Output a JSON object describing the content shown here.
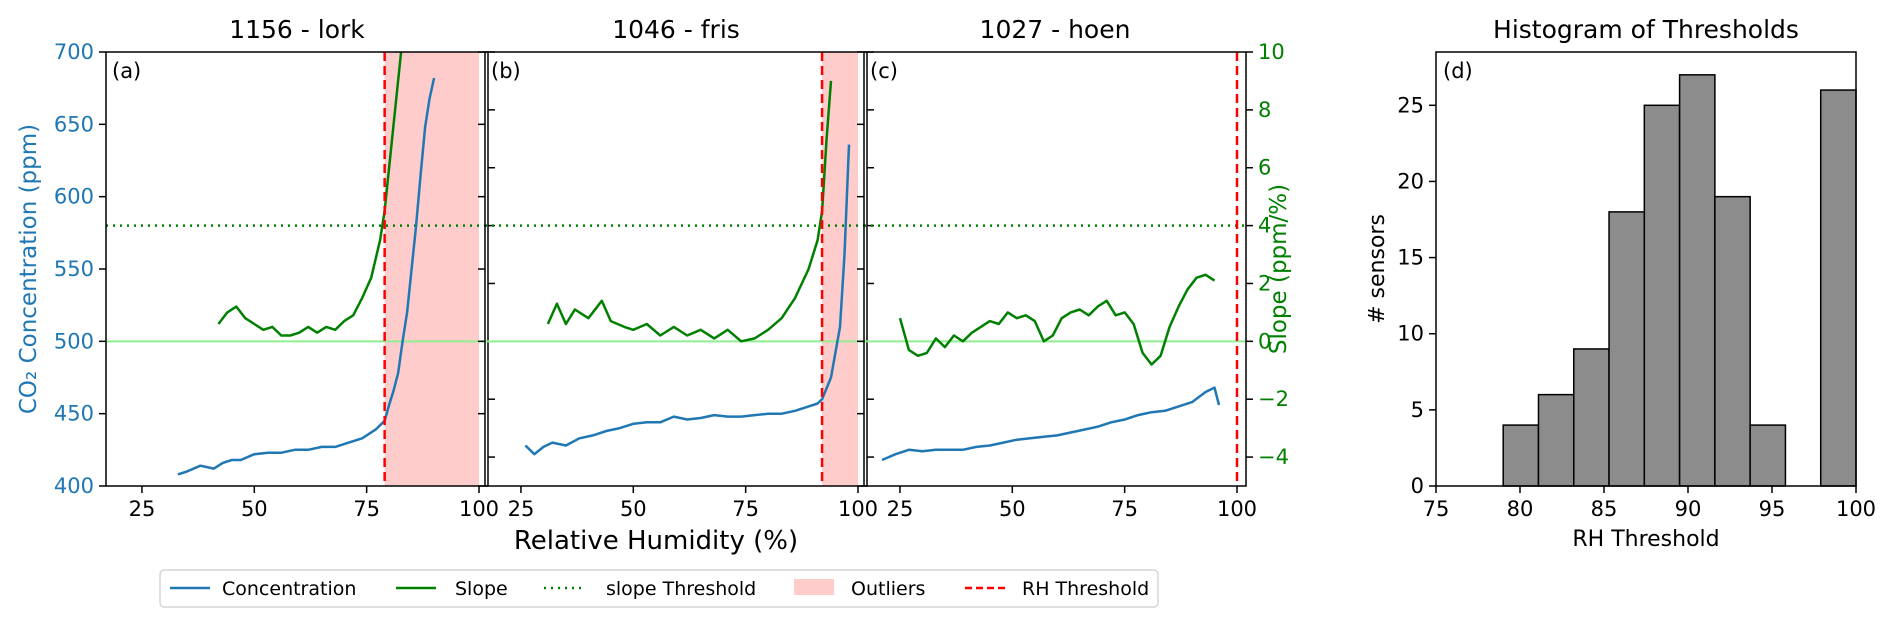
{
  "figure": {
    "shared_xlabel": "Relative Humidity (%)",
    "left_ylabel": "CO₂ Concentration (ppm)",
    "right_ylabel": "Slope (ppm/%)",
    "legend": [
      "Concentration",
      "Slope",
      "slope Threshold",
      "Outliers",
      "RH Threshold"
    ]
  },
  "colors": {
    "concentration": "#1f77b4",
    "slope": "#008000",
    "slope_threshold": "#008000",
    "zero_line": "#90ee90",
    "outliers": "#ffcccc",
    "rh_threshold": "#ff0000",
    "histogram_bar": "#8c8c8c"
  },
  "chart_data": [
    {
      "type": "line",
      "panel": "(a)",
      "title": "1156 - lork",
      "xlim": [
        17,
        102
      ],
      "xticks": [
        25,
        50,
        75,
        100
      ],
      "ylim_left": [
        400,
        700
      ],
      "yticks_left": [
        400,
        450,
        500,
        550,
        600,
        650,
        700
      ],
      "ylim_right": [
        -5,
        10
      ],
      "yticks_right": [
        -4,
        -2,
        0,
        2,
        4,
        6,
        8,
        10
      ],
      "slope_threshold": 4,
      "rh_threshold": 79,
      "outlier_range": [
        79,
        100
      ],
      "series": [
        {
          "name": "Concentration",
          "axis": "left",
          "x": [
            33,
            35,
            38,
            41,
            43,
            45,
            47,
            50,
            53,
            56,
            59,
            62,
            65,
            68,
            71,
            74,
            77,
            79,
            80,
            81,
            82,
            83,
            84,
            85,
            86,
            87,
            88,
            89,
            90
          ],
          "y": [
            408,
            410,
            414,
            412,
            416,
            418,
            418,
            422,
            423,
            423,
            425,
            425,
            427,
            427,
            430,
            433,
            439,
            445,
            456,
            466,
            478,
            500,
            520,
            550,
            580,
            615,
            648,
            668,
            682
          ]
        },
        {
          "name": "Slope",
          "axis": "right",
          "x": [
            42,
            44,
            46,
            48,
            50,
            52,
            54,
            56,
            58,
            60,
            62,
            64,
            66,
            68,
            70,
            72,
            74,
            76,
            78,
            79,
            80,
            81,
            82,
            83
          ],
          "y": [
            0.6,
            1.0,
            1.2,
            0.8,
            0.6,
            0.4,
            0.5,
            0.2,
            0.2,
            0.3,
            0.5,
            0.3,
            0.5,
            0.4,
            0.7,
            0.9,
            1.5,
            2.2,
            3.5,
            4.5,
            6.0,
            7.5,
            9.0,
            10.5
          ]
        }
      ]
    },
    {
      "type": "line",
      "panel": "(b)",
      "title": "1046 - fris",
      "xlim": [
        17,
        102
      ],
      "xticks": [
        25,
        50,
        75,
        100
      ],
      "ylim_left": [
        400,
        700
      ],
      "yticks_left": [
        400,
        450,
        500,
        550,
        600,
        650,
        700
      ],
      "ylim_right": [
        -5,
        10
      ],
      "yticks_right": [
        -4,
        -2,
        0,
        2,
        4,
        6,
        8,
        10
      ],
      "slope_threshold": 4,
      "rh_threshold": 92,
      "outlier_range": [
        92,
        100
      ],
      "series": [
        {
          "name": "Concentration",
          "axis": "left",
          "x": [
            26,
            28,
            30,
            32,
            35,
            38,
            41,
            44,
            47,
            50,
            53,
            56,
            59,
            62,
            65,
            68,
            71,
            74,
            77,
            80,
            83,
            86,
            89,
            91,
            92,
            94,
            96,
            97,
            98
          ],
          "y": [
            428,
            422,
            427,
            430,
            428,
            433,
            435,
            438,
            440,
            443,
            444,
            444,
            448,
            446,
            447,
            449,
            448,
            448,
            449,
            450,
            450,
            452,
            455,
            457,
            460,
            475,
            510,
            560,
            636
          ]
        },
        {
          "name": "Slope",
          "axis": "right",
          "x": [
            31,
            33,
            35,
            37,
            40,
            43,
            45,
            48,
            50,
            53,
            56,
            59,
            62,
            65,
            68,
            71,
            74,
            77,
            80,
            83,
            86,
            89,
            91,
            92,
            93,
            94
          ],
          "y": [
            0.6,
            1.3,
            0.6,
            1.1,
            0.8,
            1.4,
            0.7,
            0.5,
            0.4,
            0.6,
            0.2,
            0.5,
            0.2,
            0.4,
            0.1,
            0.4,
            0.0,
            0.1,
            0.4,
            0.8,
            1.5,
            2.5,
            3.5,
            4.5,
            7.0,
            9.0
          ]
        }
      ]
    },
    {
      "type": "line",
      "panel": "(c)",
      "title": "1027 - hoen",
      "xlim": [
        17,
        102
      ],
      "xticks": [
        25,
        50,
        75,
        100
      ],
      "ylim_left": [
        400,
        700
      ],
      "yticks_left": [
        400,
        450,
        500,
        550,
        600,
        650,
        700
      ],
      "ylim_right": [
        -5,
        10
      ],
      "yticks_right": [
        -4,
        -2,
        0,
        2,
        4,
        6,
        8,
        10
      ],
      "slope_threshold": 4,
      "rh_threshold": 100,
      "outlier_range": null,
      "series": [
        {
          "name": "Concentration",
          "axis": "left",
          "x": [
            21,
            24,
            27,
            30,
            33,
            36,
            39,
            42,
            45,
            48,
            51,
            54,
            57,
            60,
            63,
            66,
            69,
            72,
            75,
            78,
            81,
            84,
            87,
            90,
            93,
            95,
            96
          ],
          "y": [
            418,
            422,
            425,
            424,
            425,
            425,
            425,
            427,
            428,
            430,
            432,
            433,
            434,
            435,
            437,
            439,
            441,
            444,
            446,
            449,
            451,
            452,
            455,
            458,
            465,
            468,
            456
          ]
        },
        {
          "name": "Slope",
          "axis": "right",
          "x": [
            25,
            27,
            29,
            31,
            33,
            35,
            37,
            39,
            41,
            43,
            45,
            47,
            49,
            51,
            53,
            55,
            57,
            59,
            61,
            63,
            65,
            67,
            69,
            71,
            73,
            75,
            77,
            79,
            81,
            83,
            84,
            85,
            87,
            89,
            91,
            93,
            95
          ],
          "y": [
            0.8,
            -0.3,
            -0.5,
            -0.4,
            0.1,
            -0.2,
            0.2,
            0.0,
            0.3,
            0.5,
            0.7,
            0.6,
            1.0,
            0.8,
            0.9,
            0.7,
            0.0,
            0.2,
            0.8,
            1.0,
            1.1,
            0.9,
            1.2,
            1.4,
            0.9,
            1.0,
            0.6,
            -0.4,
            -0.8,
            -0.5,
            0.0,
            0.5,
            1.2,
            1.8,
            2.2,
            2.3,
            2.1
          ]
        }
      ]
    },
    {
      "type": "bar",
      "panel": "(d)",
      "title": "Histogram of Thresholds",
      "xlabel": "RH Threshold",
      "ylabel": "# sensors",
      "xlim": [
        75,
        100
      ],
      "xticks": [
        75,
        80,
        85,
        90,
        95,
        100
      ],
      "ylim": [
        0,
        28.5
      ],
      "yticks": [
        0,
        5,
        10,
        15,
        20,
        25
      ],
      "bin_edges": [
        79,
        81.1,
        83.2,
        85.3,
        87.4,
        89.5,
        91.6,
        93.7,
        95.8,
        97.9,
        100
      ],
      "values": [
        4,
        6,
        9,
        18,
        25,
        27,
        19,
        4,
        0,
        26
      ]
    }
  ]
}
